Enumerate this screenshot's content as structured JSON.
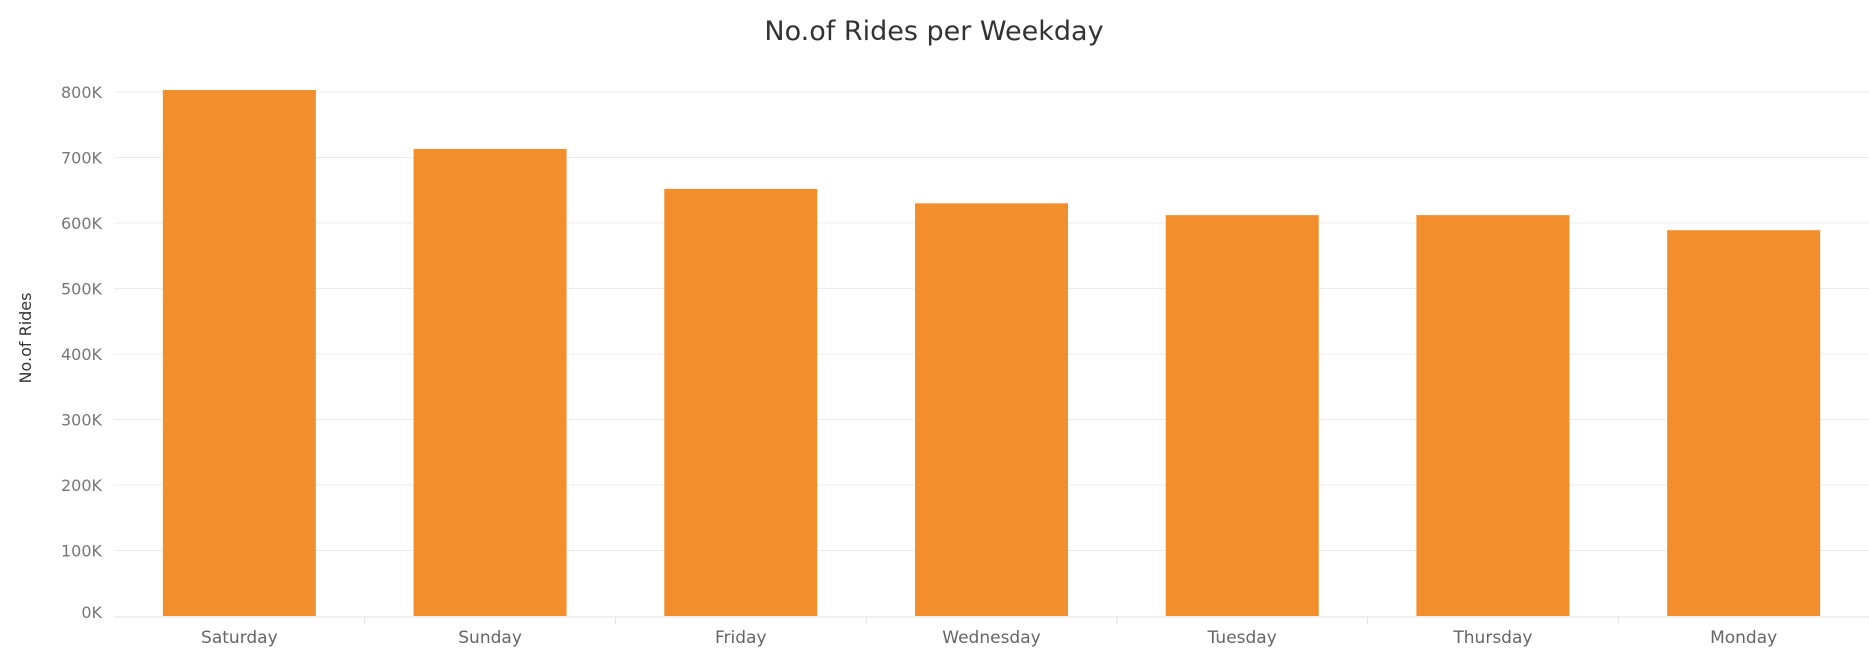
{
  "chart_data": {
    "type": "bar",
    "title": "No.of Rides per Weekday",
    "xlabel": "",
    "ylabel": "No.of Rides",
    "categories": [
      "Saturday",
      "Sunday",
      "Friday",
      "Wednesday",
      "Tuesday",
      "Thursday",
      "Monday"
    ],
    "values": [
      803000,
      713000,
      652000,
      630000,
      612000,
      612000,
      589000
    ],
    "ylim": [
      0,
      800000
    ],
    "yticks": [
      0,
      100000,
      200000,
      300000,
      400000,
      500000,
      600000,
      700000,
      800000
    ],
    "ytick_labels": [
      "0K",
      "100K",
      "200K",
      "300K",
      "400K",
      "500K",
      "600K",
      "700K",
      "800K"
    ],
    "grid": true,
    "legend": "none",
    "bar_color": "#F28E2B"
  }
}
